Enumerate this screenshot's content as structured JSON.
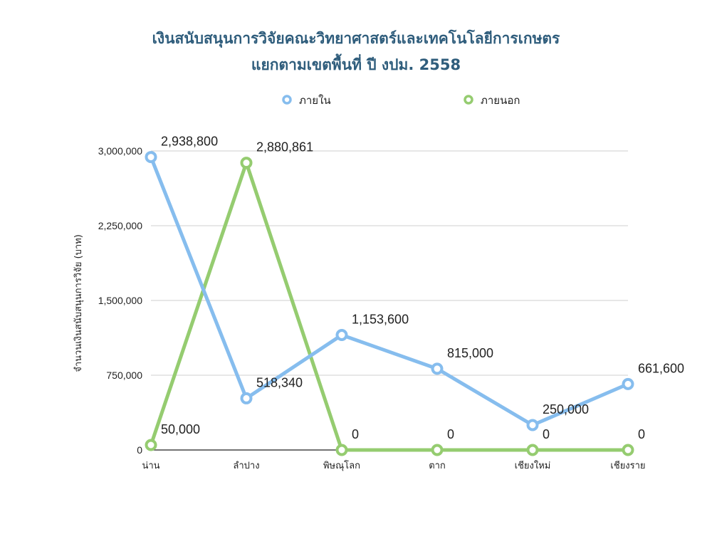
{
  "chart_data": {
    "type": "line",
    "title_line1": "เงินสนับสนุนการวิจัยคณะวิทยาศาสตร์และเทคโนโลยีการเกษตร",
    "title_line2": "แยกตามเขตพื้นที่ ปี งปม. 2558",
    "ylabel": "จำนวนเงินสนับสนุนการวิจัย (บาท)",
    "xlabel": "",
    "categories": [
      "น่าน",
      "ลำปาง",
      "พิษณุโลก",
      "ตาก",
      "เชียงใหม่",
      "เชียงราย"
    ],
    "series": [
      {
        "name": "ภายใน",
        "color": "#86bdee",
        "values": [
          2938800,
          518340,
          1153600,
          815000,
          250000,
          661600
        ],
        "labels": [
          "2,938,800",
          "518,340",
          "1,153,600",
          "815,000",
          "250,000",
          "661,600"
        ]
      },
      {
        "name": "ภายนอก",
        "color": "#95cc70",
        "values": [
          50000,
          2880861,
          0,
          0,
          0,
          0
        ],
        "labels": [
          "50,000",
          "2,880,861",
          "0",
          "0",
          "0",
          "0"
        ]
      }
    ],
    "ylim": [
      0,
      3000000
    ],
    "yticks": [
      0,
      750000,
      1500000,
      2250000,
      3000000
    ],
    "ytick_labels": [
      "0",
      "750,000",
      "1,500,000",
      "2,250,000",
      "3,000,000"
    ],
    "grid": true,
    "legend_position": "top"
  }
}
